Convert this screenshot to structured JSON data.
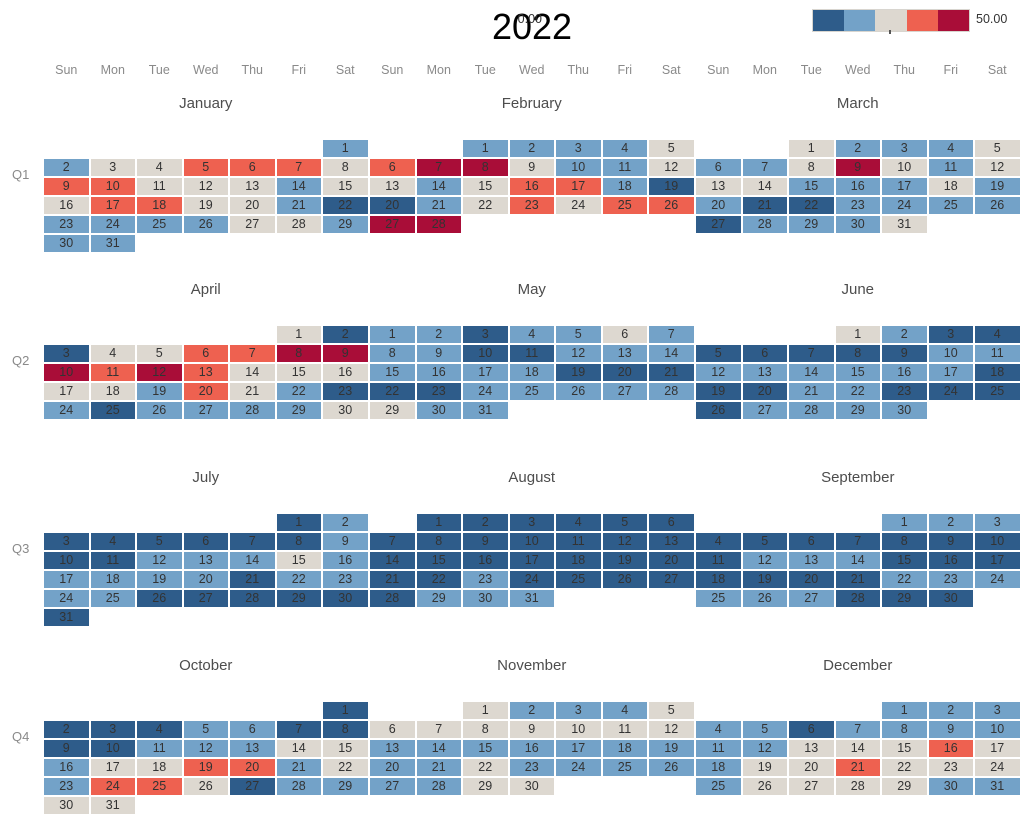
{
  "title": "2022",
  "weekdays": [
    "Sun",
    "Mon",
    "Tue",
    "Wed",
    "Thu",
    "Fri",
    "Sat"
  ],
  "quarter_labels": [
    "Q1",
    "Q2",
    "Q3",
    "Q4"
  ],
  "legend": {
    "min_label": "0.00",
    "max_label": "50.00",
    "steps": [
      "#2e5c8a",
      "#73a2c8",
      "#ddd8d0",
      "#ee6150",
      "#a90d38"
    ]
  },
  "chart_data": {
    "type": "heatmap",
    "title": "2022",
    "subtype": "calendar-heatmap",
    "color_scale": {
      "min": 0.0,
      "max": 50.0,
      "palette_order": [
        "B",
        "b",
        "g",
        "r",
        "R"
      ]
    },
    "color_codes": {
      "B": "#2e5c8a",
      "b": "#73a2c8",
      "g": "#ddd8d0",
      "r": "#ee6150",
      "R": "#a90d38"
    },
    "color_code_meaning": {
      "B": "dark-blue (lowest bucket)",
      "b": "medium-blue",
      "g": "light-gray (middle)",
      "r": "salmon-red",
      "R": "dark-red (highest bucket)"
    },
    "months": [
      {
        "name": "January",
        "quarter": "Q1",
        "first_dow": 6,
        "days": 31,
        "day_colors": "bbggrrrgrrgggbggrrggbBbbbbggbbb"
      },
      {
        "name": "February",
        "quarter": "Q1",
        "first_dow": 2,
        "days": 28,
        "day_colors": "bbbbgrRRgbbggbgrrbBBbgrgrrRR"
      },
      {
        "name": "March",
        "quarter": "Q1",
        "first_dow": 2,
        "days": 31,
        "day_colors": "gbbbgbbgRgbgggbbbgbbBBbbbbBbbbg"
      },
      {
        "name": "April",
        "quarter": "Q2",
        "first_dow": 5,
        "days": 30,
        "day_colors": "gBBggrrRRRrRrgggggbrgbBbBbbbbg"
      },
      {
        "name": "May",
        "quarter": "Q2",
        "first_dow": 0,
        "days": 31,
        "day_colors": "bbBbbgbbbBBbbbbbbbBBBBBbbbbbgbb"
      },
      {
        "name": "June",
        "quarter": "Q2",
        "first_dow": 3,
        "days": 30,
        "day_colors": "gbBBBBBBBbbbbbbbbBBBbbBBBBbbbb"
      },
      {
        "name": "July",
        "quarter": "Q3",
        "first_dow": 5,
        "days": 31,
        "day_colors": "BbBBBBBBbBBbbbgbbbbbBbbbbBBBBBB"
      },
      {
        "name": "August",
        "quarter": "Q3",
        "first_dow": 1,
        "days": 31,
        "day_colors": "BBBBBBBBBBBBBBBBBBBBBBbBBBBBbbb"
      },
      {
        "name": "September",
        "quarter": "Q3",
        "first_dow": 4,
        "days": 30,
        "day_colors": "bbbBBBBBBBBbbbBBBBBBBbbbbbbBBB"
      },
      {
        "name": "October",
        "quarter": "Q4",
        "first_dow": 6,
        "days": 31,
        "day_colors": "BBBBbbBBBBbbbggbggrrbgbrrgBbbgg"
      },
      {
        "name": "November",
        "quarter": "Q4",
        "first_dow": 2,
        "days": 30,
        "day_colors": "gbbbggggggggbbbbbbbbbgbbbbbbgg"
      },
      {
        "name": "December",
        "quarter": "Q4",
        "first_dow": 4,
        "days": 31,
        "day_colors": "bbbbbBbbbbbbgggrgbggrgggbggggbb"
      }
    ]
  }
}
